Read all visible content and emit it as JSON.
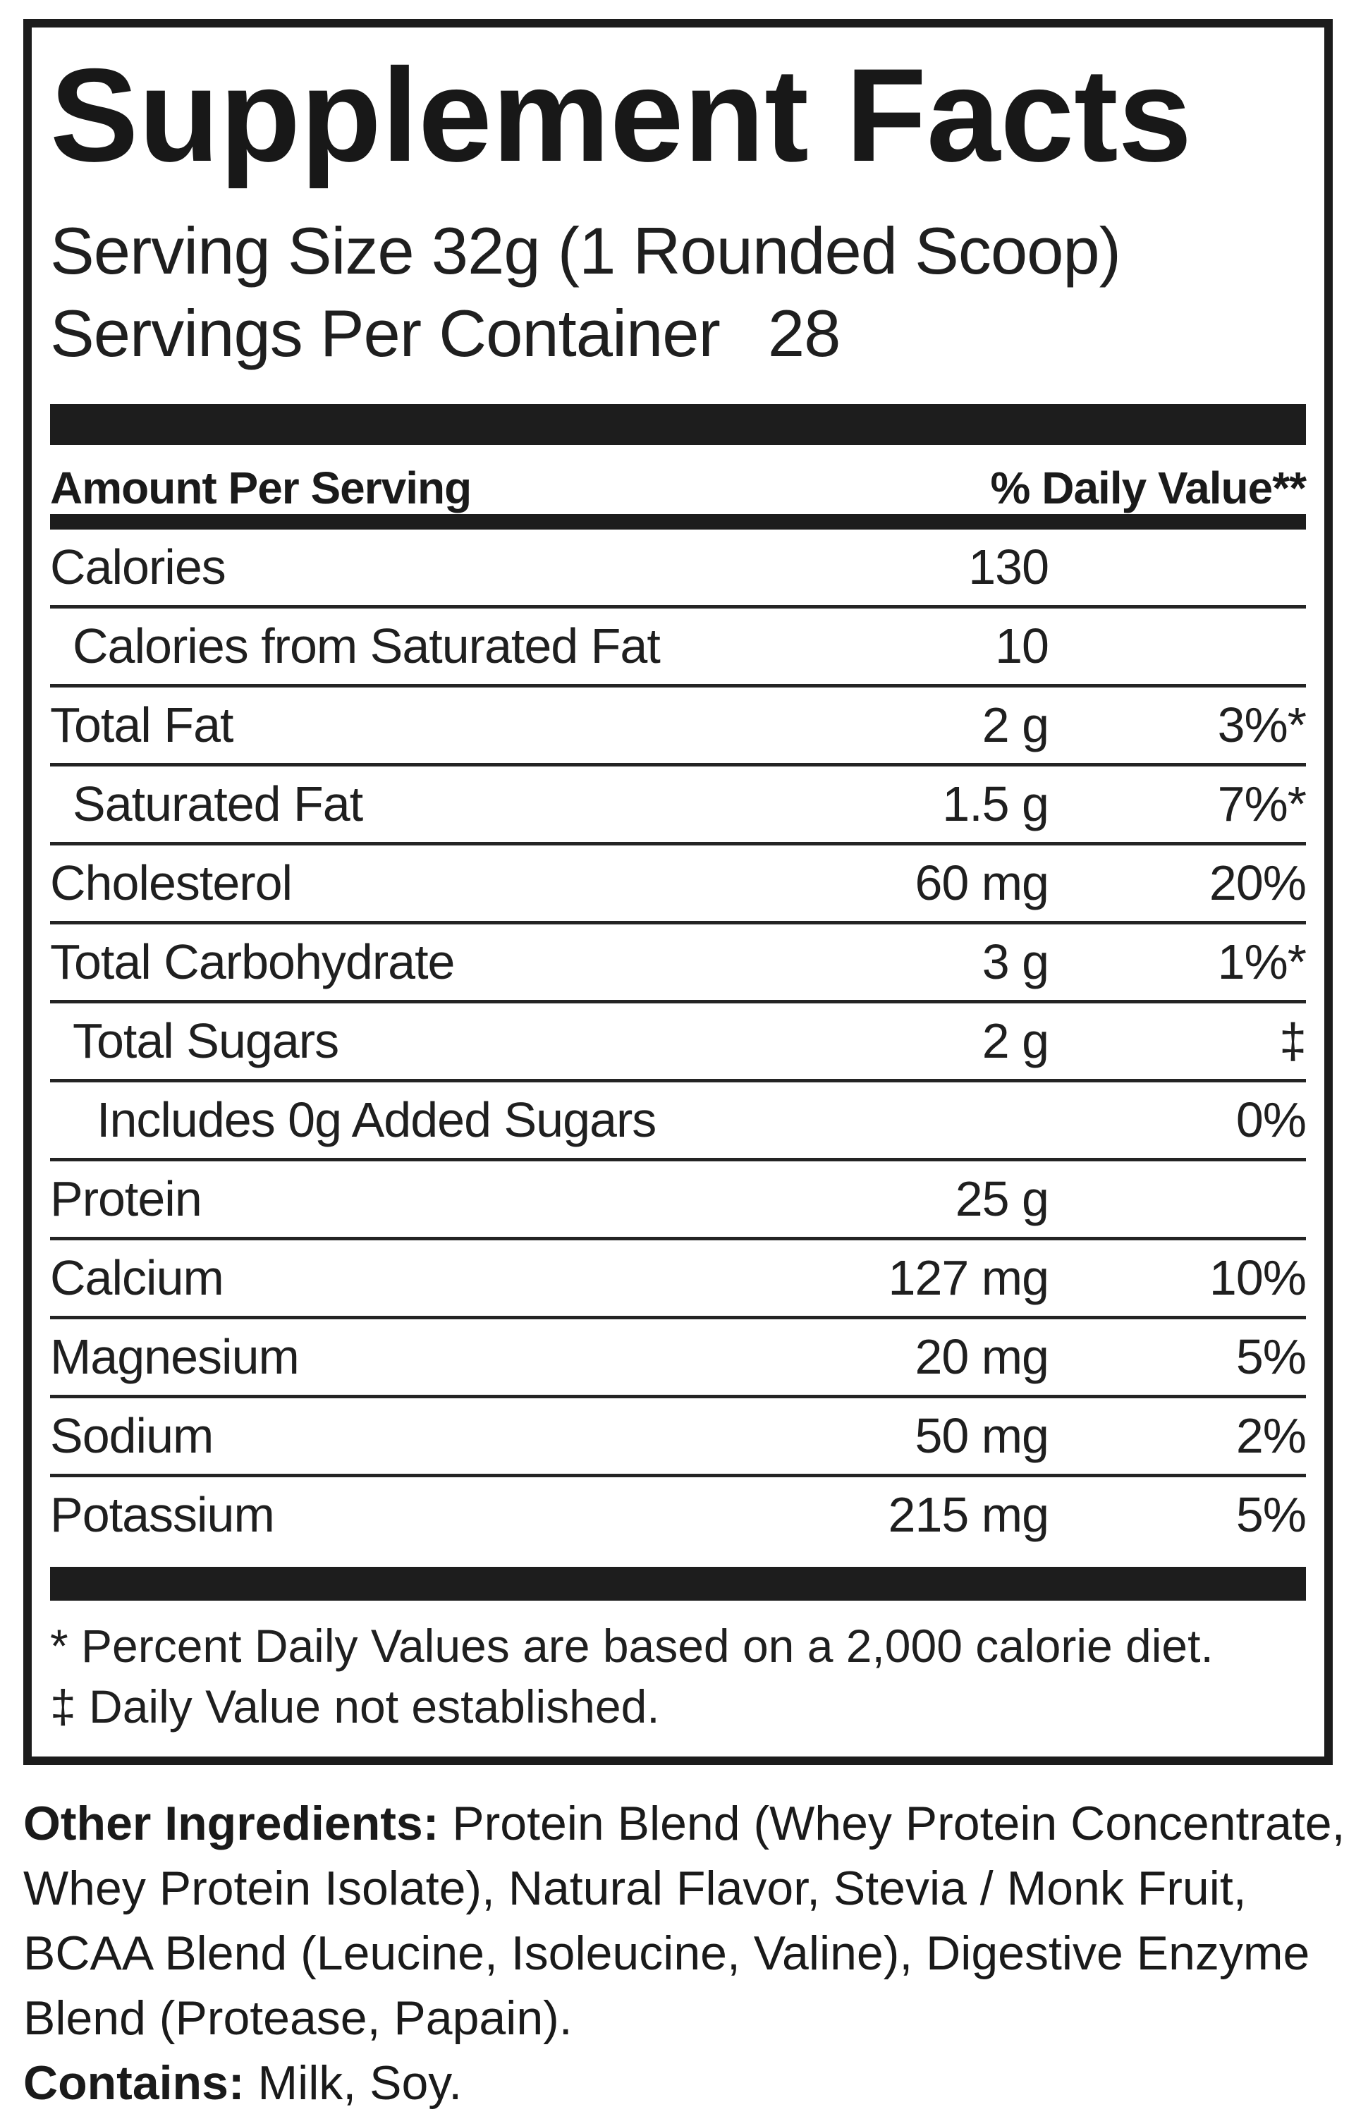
{
  "colors": {
    "ink": "#1c1c1c",
    "background": "#ffffff"
  },
  "panel": {
    "title": "Supplement Facts",
    "serving_size": "Serving Size 32g (1 Rounded Scoop)",
    "servings_per_container_label": "Servings Per Container",
    "servings_per_container_value": "28",
    "header": {
      "amount_col": "Amount Per Serving",
      "dv_col": "% Daily Value**"
    },
    "rows": [
      {
        "name": "Calories",
        "amount": "130",
        "dv": "",
        "indent": 0
      },
      {
        "name": "Calories from Saturated Fat",
        "amount": "10",
        "dv": "",
        "indent": 1
      },
      {
        "name": "Total Fat",
        "amount": "2 g",
        "dv": "3%*",
        "indent": 0
      },
      {
        "name": "Saturated Fat",
        "amount": "1.5 g",
        "dv": "7%*",
        "indent": 1
      },
      {
        "name": "Cholesterol",
        "amount": "60 mg",
        "dv": "20%",
        "indent": 0
      },
      {
        "name": "Total Carbohydrate",
        "amount": "3 g",
        "dv": "1%*",
        "indent": 0
      },
      {
        "name": "Total Sugars",
        "amount": "2 g",
        "dv": "‡",
        "indent": 1
      },
      {
        "name": "Includes 0g Added Sugars",
        "amount": "",
        "dv": "0%",
        "indent": 2
      },
      {
        "name": "Protein",
        "amount": "25 g",
        "dv": "",
        "indent": 0
      },
      {
        "name": "Calcium",
        "amount": "127 mg",
        "dv": "10%",
        "indent": 0
      },
      {
        "name": "Magnesium",
        "amount": "20 mg",
        "dv": "5%",
        "indent": 0
      },
      {
        "name": "Sodium",
        "amount": "50 mg",
        "dv": "2%",
        "indent": 0
      },
      {
        "name": "Potassium",
        "amount": "215 mg",
        "dv": "5%",
        "indent": 0
      }
    ],
    "footnotes": [
      "* Percent Daily Values are based on a 2,000 calorie diet.",
      "‡ Daily Value not established."
    ]
  },
  "ingredients": {
    "label": "Other Ingredients:",
    "line1_rest": " Protein Blend (Whey Protein Concentrate,",
    "lines": [
      "Whey Protein Isolate), Natural Flavor, Stevia / Monk Fruit,",
      "BCAA Blend (Leucine, Isoleucine, Valine), Digestive Enzyme",
      "Blend (Protease, Papain)."
    ]
  },
  "contains": {
    "label": "Contains:",
    "rest": " Milk, Soy."
  }
}
